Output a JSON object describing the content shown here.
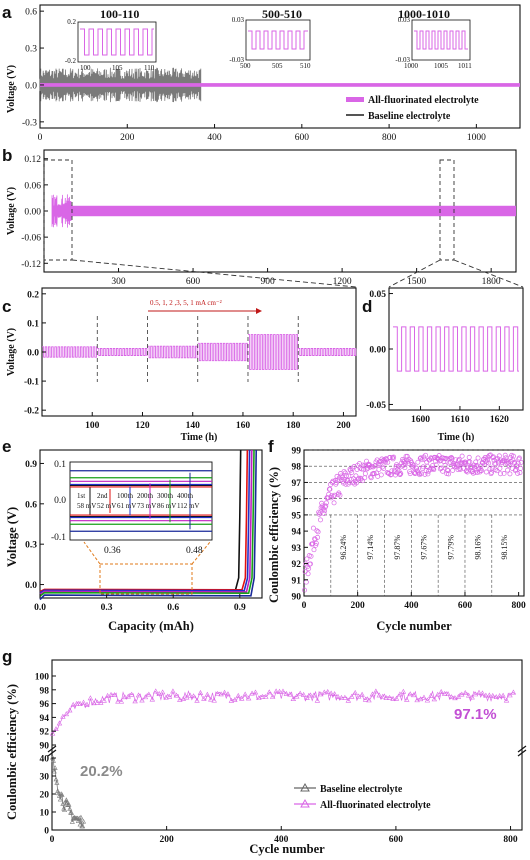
{
  "colors": {
    "fluor": "#d966e6",
    "base": "#7a7a7a",
    "fluor_text": "#c24fd4",
    "base_text": "#8a8a8a"
  },
  "chart_data": [
    {
      "panel": "a",
      "type": "line",
      "xlim": [
        0,
        1100
      ],
      "ylim": [
        -0.35,
        0.65
      ],
      "xticks": [
        "0",
        "200",
        "400",
        "600",
        "800",
        "1000"
      ],
      "yticks": [
        "-0.3",
        "0.0",
        "0.3",
        "0.6"
      ],
      "ylabel": "Voltage (V)",
      "series": [
        {
          "name": "All-fluorinated electrolyte",
          "amplitude_V": 0.015,
          "x_range": [
            0,
            1100
          ]
        },
        {
          "name": "Baseline electrolyte",
          "amplitude_V": 0.1,
          "x_range": [
            0,
            370
          ]
        }
      ],
      "insets": [
        {
          "title": "100-110",
          "ylim": [
            "-0.2",
            "0.2"
          ],
          "xticks": [
            "100",
            "105",
            "110"
          ]
        },
        {
          "title": "500-510",
          "ylim": [
            "-0.03",
            "0.03"
          ],
          "xticks": [
            "500",
            "505",
            "510"
          ]
        },
        {
          "title": "1000-1010",
          "ylim": [
            "-0.03",
            "0.03"
          ],
          "xticks": [
            "1000",
            "1005",
            "1011"
          ]
        }
      ]
    },
    {
      "panel": "b",
      "type": "line",
      "xlim": [
        0,
        1900
      ],
      "ylim": [
        -0.14,
        0.14
      ],
      "xticks": [
        "300",
        "600",
        "900",
        "1200",
        "1500",
        "1800"
      ],
      "yticks": [
        "-0.12",
        "-0.06",
        "0.00",
        "0.06",
        "0.12"
      ],
      "ylabel": "Voltage (V)",
      "series": [
        {
          "name": "All-fluorinated electrolyte",
          "amplitude_V": 0.012
        }
      ],
      "zoom_windows": [
        [
          100,
          200
        ],
        [
          1570,
          1625
        ]
      ]
    },
    {
      "panel": "c",
      "type": "line",
      "xlim": [
        80,
        205
      ],
      "ylim": [
        -0.22,
        0.22
      ],
      "xticks": [
        "100",
        "120",
        "140",
        "160",
        "180",
        "200"
      ],
      "yticks": [
        "-0.2",
        "-0.1",
        "0.0",
        "0.1",
        "0.2"
      ],
      "xlabel": "Time (h)",
      "ylabel": "Voltage (V)",
      "annotation": "0.5, 1, 2 ,3, 5, 1 mA cm⁻²",
      "segments": [
        {
          "x": [
            80,
            102
          ],
          "amplitude_V": 0.018
        },
        {
          "x": [
            102,
            122
          ],
          "amplitude_V": 0.012
        },
        {
          "x": [
            122,
            142
          ],
          "amplitude_V": 0.02
        },
        {
          "x": [
            142,
            162
          ],
          "amplitude_V": 0.03
        },
        {
          "x": [
            162,
            182
          ],
          "amplitude_V": 0.06
        },
        {
          "x": [
            182,
            205
          ],
          "amplitude_V": 0.012
        }
      ]
    },
    {
      "panel": "d",
      "type": "line",
      "xlim": [
        1592,
        1626
      ],
      "ylim": [
        -0.055,
        0.055
      ],
      "xticks": [
        "1600",
        "1610",
        "1620"
      ],
      "yticks": [
        "-0.05",
        "0.00",
        "0.05"
      ],
      "xlabel": "Time (h)",
      "series": [
        {
          "name": "All-fluorinated electrolyte",
          "amplitude_V": 0.02
        }
      ]
    },
    {
      "panel": "e",
      "type": "line",
      "xlim": [
        0,
        1.0
      ],
      "ylim": [
        -0.1,
        1.0
      ],
      "xticks": [
        "0.0",
        "0.3",
        "0.6",
        "0.9"
      ],
      "yticks": [
        "0.0",
        "0.3",
        "0.6",
        "0.9"
      ],
      "xlabel": "Capacity (mAh)",
      "ylabel": "Voltage (V)",
      "inset": {
        "xticks": [
          "0.36",
          "0.48"
        ],
        "yticks": [
          "0.1",
          "0.0",
          "-0.1"
        ],
        "overpotentials": [
          {
            "cycle": "1st",
            "mV": "58 mV",
            "color": "#111111"
          },
          {
            "cycle": "2nd",
            "mV": "52 mV",
            "color": "#e01010"
          },
          {
            "cycle": "100th",
            "mV": "61 mV",
            "color": "#2030c8"
          },
          {
            "cycle": "200th",
            "mV": "73 mV",
            "color": "#c020c0"
          },
          {
            "cycle": "300th",
            "mV": "86 mV",
            "color": "#18a018"
          },
          {
            "cycle": "400th",
            "mV": "112 mV",
            "color": "#1a2a9a"
          }
        ]
      }
    },
    {
      "panel": "f",
      "type": "scatter",
      "xlim": [
        0,
        820
      ],
      "ylim": [
        90,
        99
      ],
      "xticks": [
        "0",
        "200",
        "400",
        "600",
        "800"
      ],
      "yticks": [
        "90",
        "91",
        "92",
        "93",
        "94",
        "95",
        "96",
        "97",
        "98",
        "99"
      ],
      "xlabel": "Cycle number",
      "ylabel": "Coulombic efficiency (%)",
      "average_ce": [
        {
          "label": "96.24%",
          "range": [
            100,
            200
          ]
        },
        {
          "label": "97.14%",
          "range": [
            200,
            300
          ]
        },
        {
          "label": "97.87%",
          "range": [
            300,
            400
          ]
        },
        {
          "label": "97.67%",
          "range": [
            400,
            500
          ]
        },
        {
          "label": "97.79%",
          "range": [
            500,
            600
          ]
        },
        {
          "label": "98.16%",
          "range": [
            600,
            700
          ]
        },
        {
          "label": "98.15%",
          "range": [
            700,
            800
          ]
        }
      ],
      "guides_y": [
        95,
        96,
        97,
        98,
        99
      ]
    },
    {
      "panel": "g",
      "type": "scatter",
      "xlim": [
        0,
        820
      ],
      "yticks_upper": [
        "90",
        "92",
        "94",
        "96",
        "98",
        "100"
      ],
      "yticks_lower": [
        "0",
        "10",
        "20",
        "30",
        "40"
      ],
      "xticks": [
        "0",
        "200",
        "400",
        "600",
        "800"
      ],
      "xlabel": "Cycle number",
      "ylabel": "Coulombic efficiency (%)",
      "avg_fluor": "97.1%",
      "avg_base": "20.2%",
      "series": [
        {
          "name": "Baseline electrolyte",
          "x_range": [
            1,
            55
          ],
          "approx_values": [
            40,
            30,
            20,
            10
          ]
        },
        {
          "name": "All-fluorinated electrolyte",
          "x_range": [
            1,
            810
          ],
          "level": 97.1
        }
      ]
    }
  ]
}
